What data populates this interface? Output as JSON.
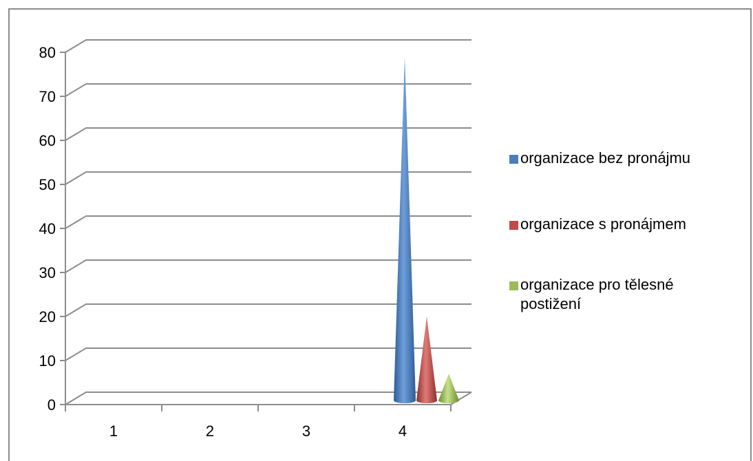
{
  "chart_data": {
    "type": "bar",
    "style": "3d-cone",
    "categories": [
      "1",
      "2",
      "3",
      "4"
    ],
    "series": [
      {
        "name": "organizace bez pronájmu",
        "values": [
          0,
          0,
          0,
          79
        ],
        "color": "#4a7ebb"
      },
      {
        "name": "organizace s pronájmem",
        "values": [
          0,
          0,
          0,
          20
        ],
        "color": "#be4b48"
      },
      {
        "name": "organizace pro tělesné postižení",
        "values": [
          0,
          0,
          0,
          7
        ],
        "color": "#9bbb59"
      }
    ],
    "y_ticks": [
      "0",
      "10",
      "20",
      "30",
      "40",
      "50",
      "60",
      "70",
      "80"
    ],
    "ylim": [
      0,
      80
    ],
    "grid": true,
    "legend_position": "right",
    "title": "",
    "xlabel": "",
    "ylabel": ""
  }
}
